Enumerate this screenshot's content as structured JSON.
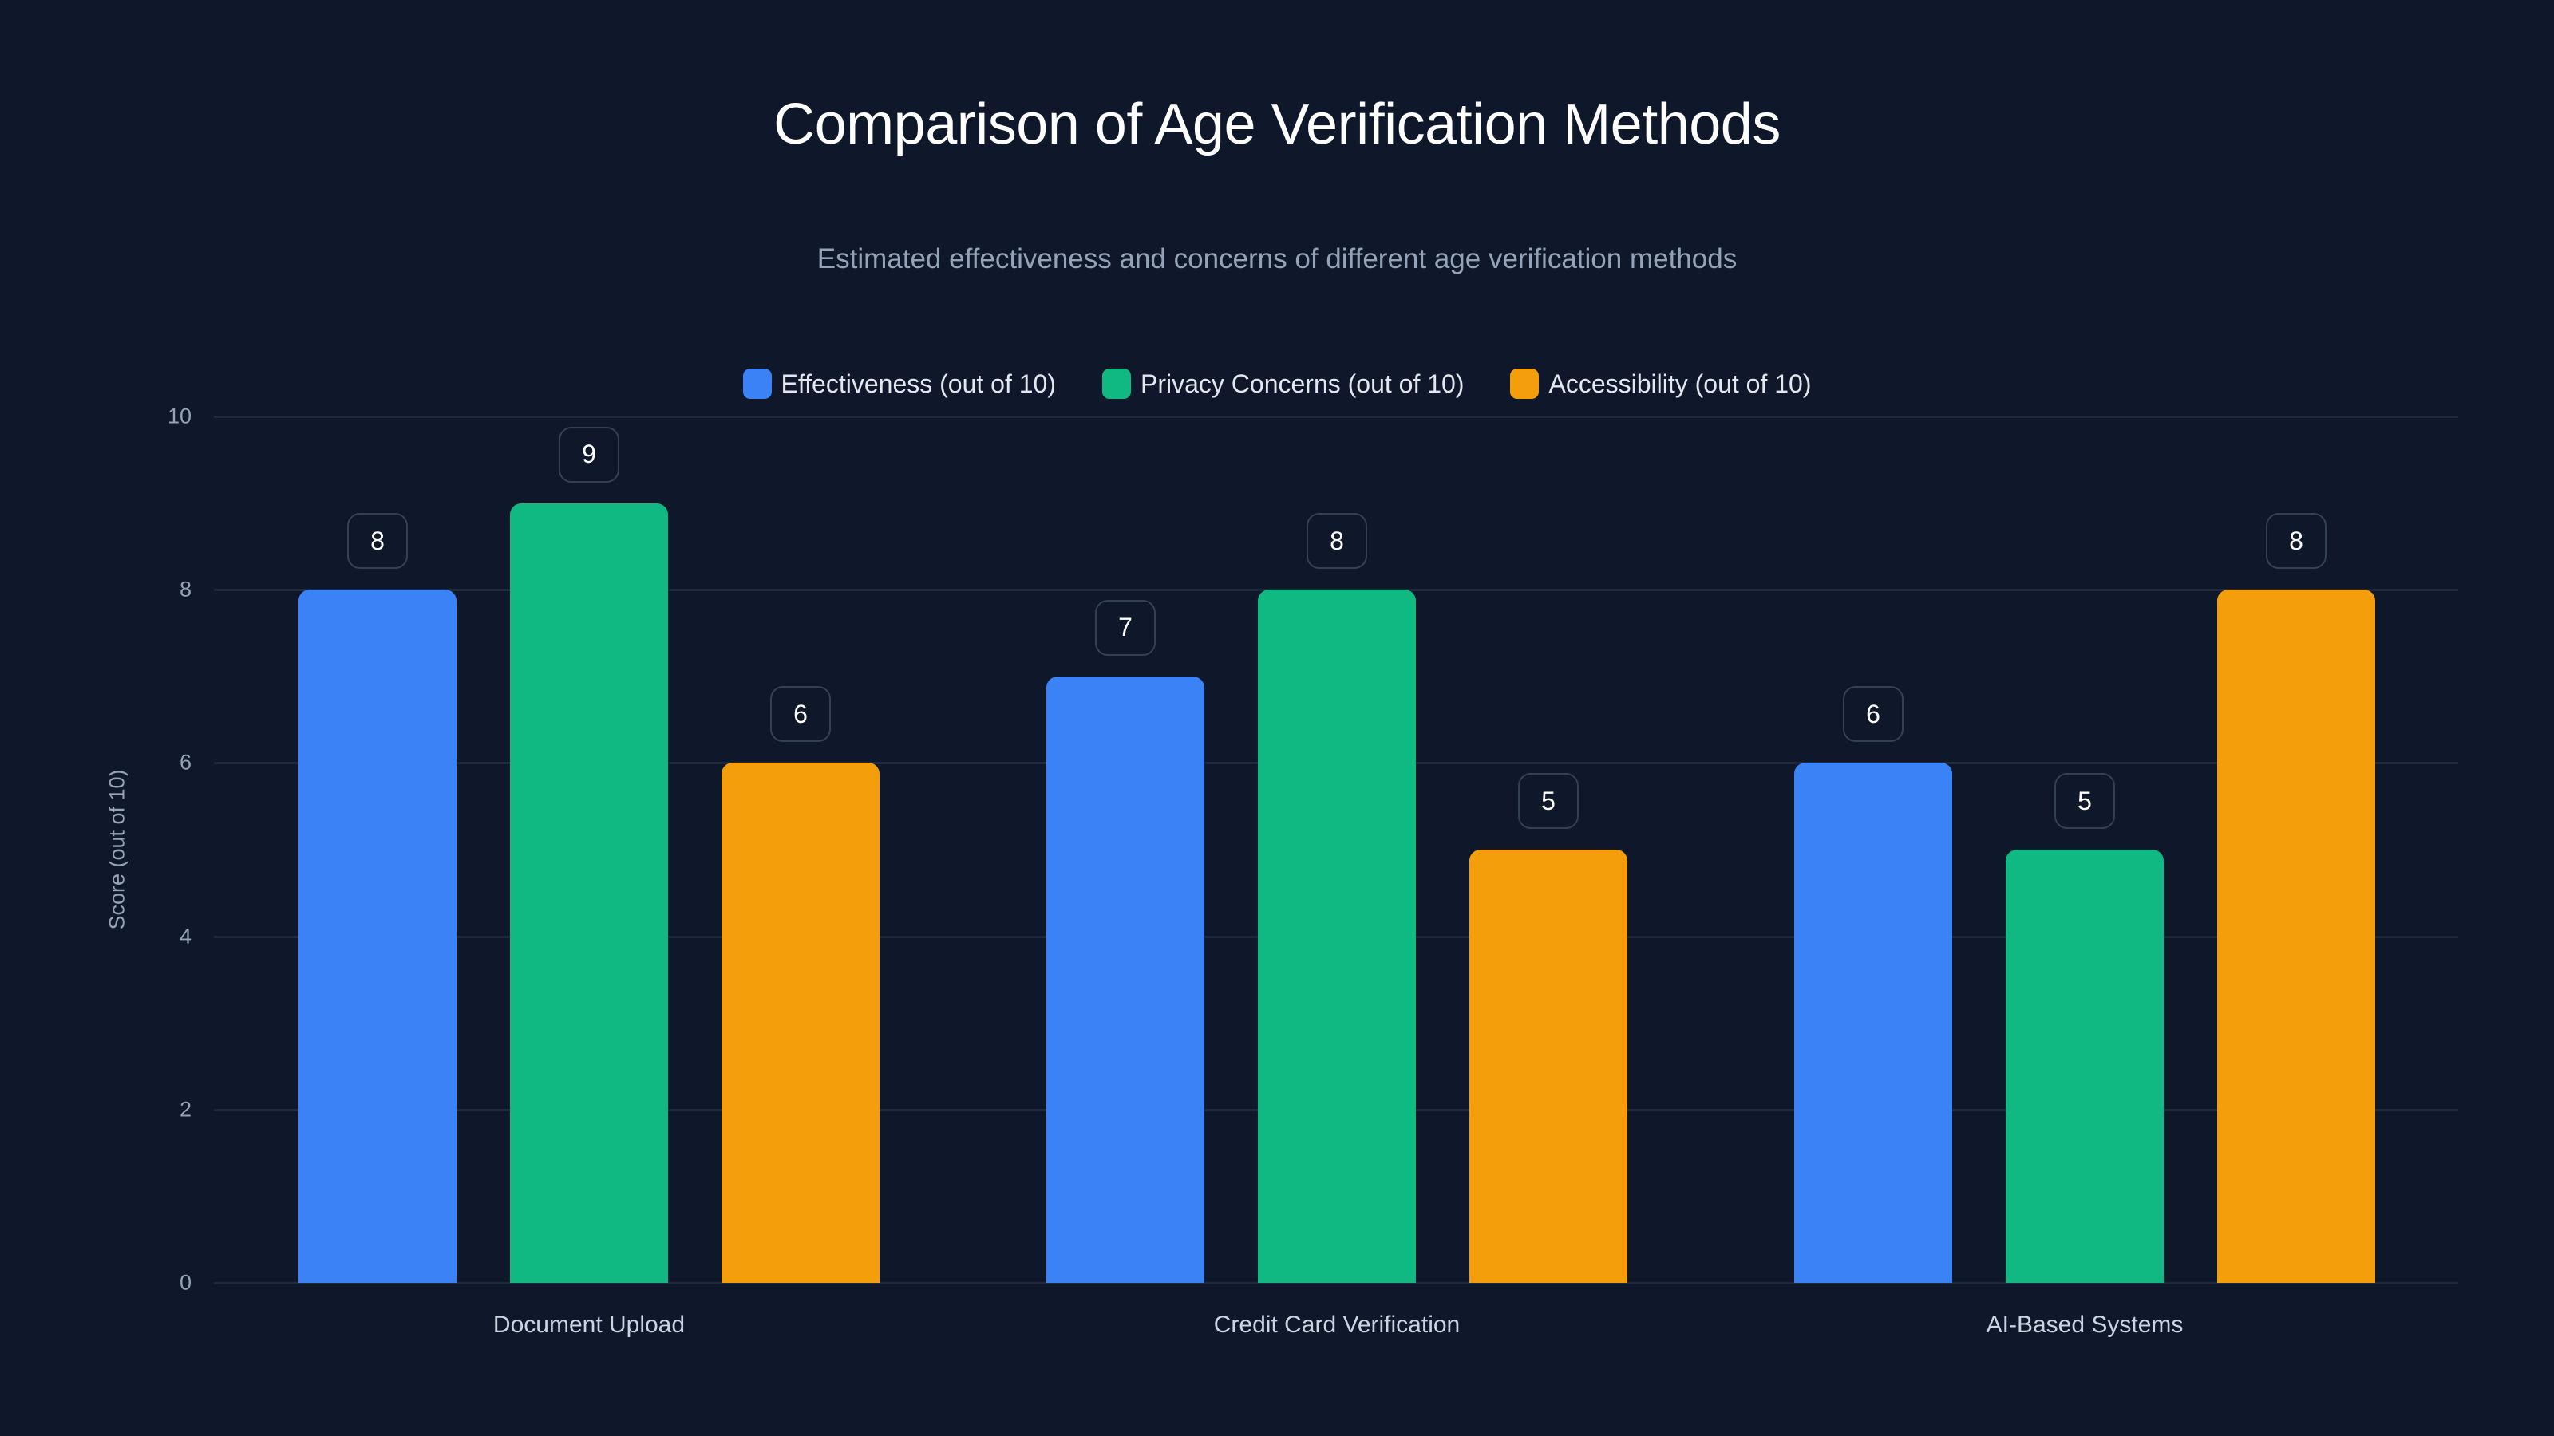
{
  "chart_data": {
    "type": "bar",
    "title": "Comparison of Age Verification Methods",
    "subtitle": "Estimated effectiveness and concerns of different age verification methods",
    "xlabel": "",
    "ylabel": "Score (out of 10)",
    "ylim": [
      0,
      10
    ],
    "yticks": [
      "0",
      "2",
      "4",
      "6",
      "8",
      "10"
    ],
    "grid": true,
    "legend_position": "top",
    "categories": [
      "Document Upload",
      "Credit Card Verification",
      "AI-Based Systems"
    ],
    "series": [
      {
        "name": "Effectiveness (out of 10)",
        "color": "#3b82f6",
        "values": [
          8,
          7,
          6
        ]
      },
      {
        "name": "Privacy Concerns (out of 10)",
        "color": "#10b981",
        "values": [
          9,
          8,
          5
        ]
      },
      {
        "name": "Accessibility (out of 10)",
        "color": "#f59e0b",
        "values": [
          6,
          5,
          8
        ]
      }
    ],
    "data_labels": true
  }
}
